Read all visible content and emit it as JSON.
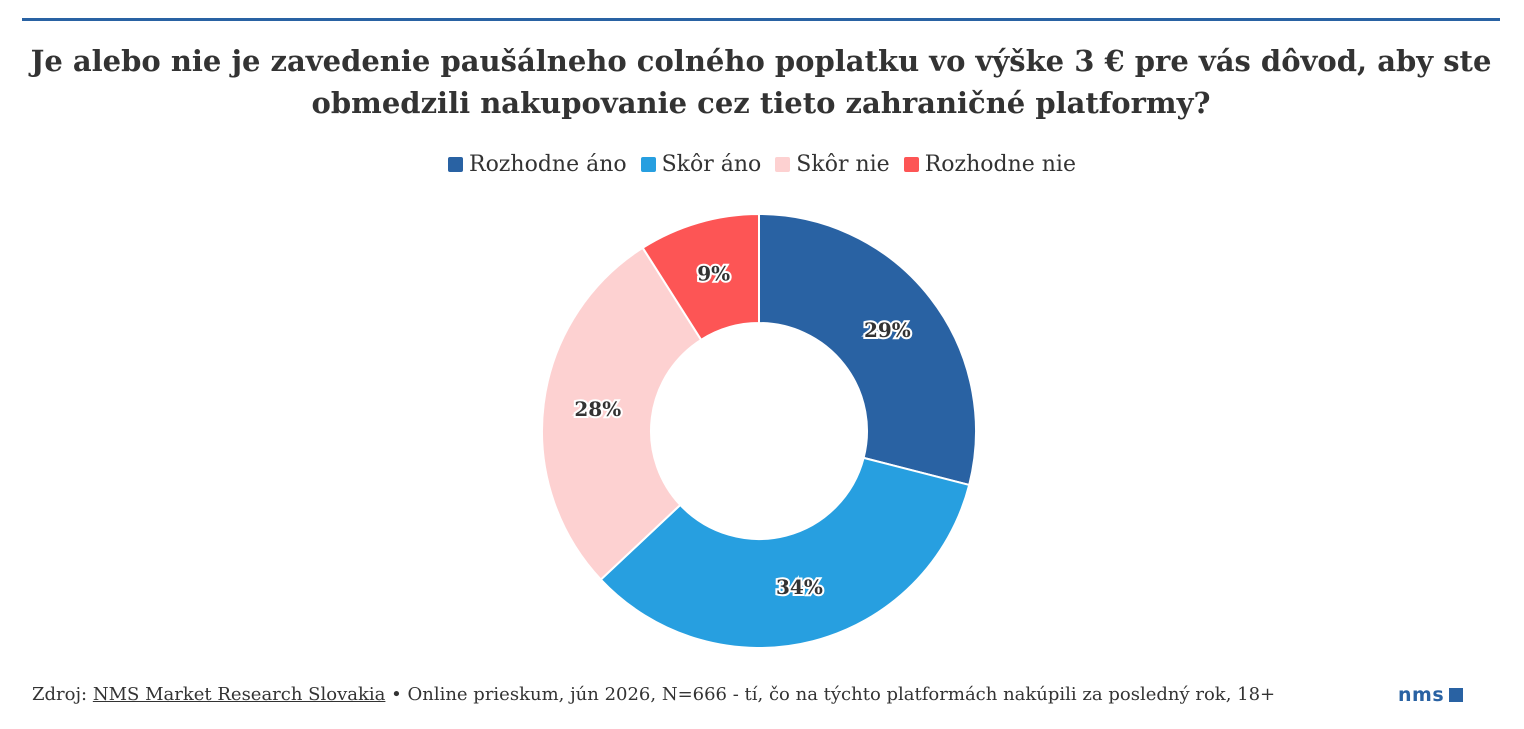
{
  "title": "Je alebo nie je zavedenie paušálneho colného poplatku vo výške 3 € pre vás dôvod, aby ste obmedzili nakupovanie cez tieto zahraničné platformy?",
  "legend": [
    {
      "label": "Rozhodne áno",
      "color": "#2962a3"
    },
    {
      "label": "Skôr áno",
      "color": "#279fe0"
    },
    {
      "label": "Skôr nie",
      "color": "#fdd1d1"
    },
    {
      "label": "Rozhodne nie",
      "color": "#fd5555"
    }
  ],
  "chart_data": {
    "type": "pie",
    "variant": "donut",
    "title": "Je alebo nie je zavedenie paušálneho colného poplatku vo výške 3 € pre vás dôvod, aby ste obmedzili nakupovanie cez tieto zahraničné platformy?",
    "categories": [
      "Rozhodne áno",
      "Skôr áno",
      "Skôr nie",
      "Rozhodne nie"
    ],
    "values": [
      29,
      34,
      28,
      9
    ],
    "labels": [
      "29%",
      "34%",
      "28%",
      "9%"
    ],
    "colors": [
      "#2962a3",
      "#279fe0",
      "#fdd1d1",
      "#fd5555"
    ],
    "legend_position": "top"
  },
  "footer": {
    "prefix": "Zdroj: ",
    "source": "NMS Market Research Slovakia",
    "details": " • Online prieskum, jún 2026, N=666 - tí, čo na týchto platformách nakúpili za posledný rok, 18+"
  },
  "logo": {
    "text": "nms",
    "icon": "square-icon"
  }
}
